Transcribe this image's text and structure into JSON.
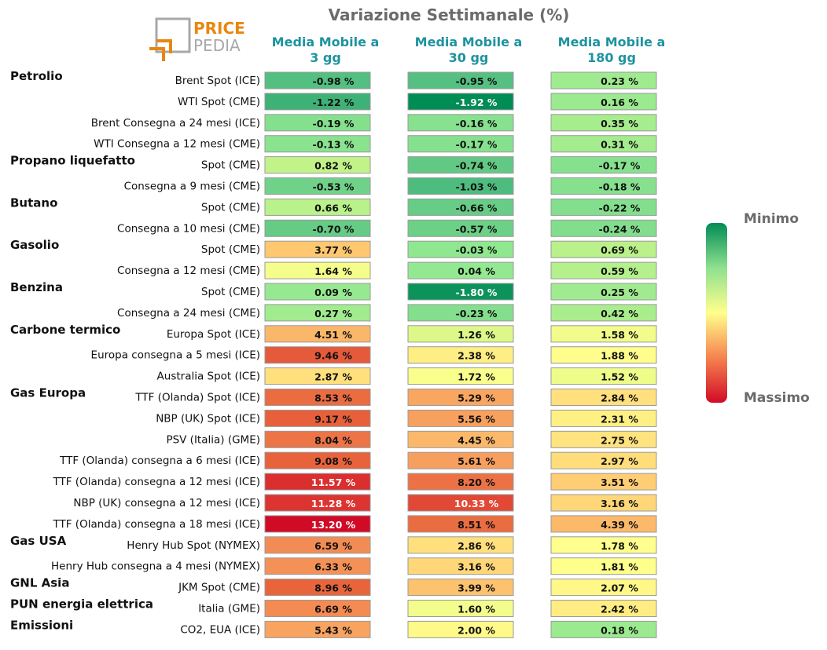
{
  "chart_data": {
    "type": "heatmap",
    "title": "Variazione Settimanale (%)",
    "logo": {
      "part1": "PRICE",
      "part2": "PEDIA"
    },
    "columns": [
      "Media Mobile a 3 gg",
      "Media Mobile a 30 gg",
      "Media Mobile a 180 gg"
    ],
    "value_suffix": " %",
    "legend": {
      "min_label": "Minimo",
      "max_label": "Massimo"
    },
    "groups": [
      {
        "name": "Petrolio",
        "rows": [
          {
            "label": "Brent Spot (ICE)",
            "values": [
              -0.98,
              -0.95,
              0.23
            ]
          },
          {
            "label": "WTI Spot (CME)",
            "values": [
              -1.22,
              -1.92,
              0.16
            ]
          },
          {
            "label": "Brent Consegna a 24 mesi (ICE)",
            "values": [
              -0.19,
              -0.16,
              0.35
            ]
          },
          {
            "label": "WTI Consegna a 12 mesi (CME)",
            "values": [
              -0.13,
              -0.17,
              0.31
            ]
          }
        ]
      },
      {
        "name": "Propano liquefatto",
        "rows": [
          {
            "label": "Spot (CME)",
            "values": [
              0.82,
              -0.74,
              -0.17
            ]
          },
          {
            "label": "Consegna a 9 mesi (CME)",
            "values": [
              -0.53,
              -1.03,
              -0.18
            ]
          }
        ]
      },
      {
        "name": "Butano",
        "rows": [
          {
            "label": "Spot (CME)",
            "values": [
              0.66,
              -0.66,
              -0.22
            ]
          },
          {
            "label": "Consegna a 10 mesi (CME)",
            "values": [
              -0.7,
              -0.57,
              -0.24
            ]
          }
        ]
      },
      {
        "name": "Gasolio",
        "rows": [
          {
            "label": "Spot (CME)",
            "values": [
              3.77,
              -0.03,
              0.69
            ]
          },
          {
            "label": "Consegna a 12 mesi (CME)",
            "values": [
              1.64,
              0.04,
              0.59
            ]
          }
        ]
      },
      {
        "name": "Benzina",
        "rows": [
          {
            "label": "Spot (CME)",
            "values": [
              0.09,
              -1.8,
              0.25
            ]
          },
          {
            "label": "Consegna a 24 mesi (CME)",
            "values": [
              0.27,
              -0.23,
              0.42
            ]
          }
        ]
      },
      {
        "name": "Carbone termico",
        "rows": [
          {
            "label": "Europa Spot (ICE)",
            "values": [
              4.51,
              1.26,
              1.58
            ]
          },
          {
            "label": "Europa consegna a 5 mesi (ICE)",
            "values": [
              9.46,
              2.38,
              1.88
            ]
          },
          {
            "label": "Australia Spot (ICE)",
            "values": [
              2.87,
              1.72,
              1.52
            ]
          }
        ]
      },
      {
        "name": "Gas Europa",
        "rows": [
          {
            "label": "TTF (Olanda) Spot (ICE)",
            "values": [
              8.53,
              5.29,
              2.84
            ]
          },
          {
            "label": "NBP (UK) Spot (ICE)",
            "values": [
              9.17,
              5.56,
              2.31
            ]
          },
          {
            "label": "PSV (Italia) (GME)",
            "values": [
              8.04,
              4.45,
              2.75
            ]
          },
          {
            "label": "TTF (Olanda) consegna a 6 mesi (ICE)",
            "values": [
              9.08,
              5.61,
              2.97
            ]
          },
          {
            "label": "TTF (Olanda) consegna a 12 mesi (ICE)",
            "values": [
              11.57,
              8.2,
              3.51
            ]
          },
          {
            "label": "NBP (UK) consegna a 12 mesi (ICE)",
            "values": [
              11.28,
              10.33,
              3.16
            ]
          },
          {
            "label": "TTF (Olanda) consegna a 18 mesi (ICE)",
            "values": [
              13.2,
              8.51,
              4.39
            ]
          }
        ]
      },
      {
        "name": "Gas USA",
        "rows": [
          {
            "label": "Henry Hub Spot (NYMEX)",
            "values": [
              6.59,
              2.86,
              1.78
            ]
          },
          {
            "label": "Henry Hub consegna a 4 mesi (NYMEX)",
            "values": [
              6.33,
              3.16,
              1.81
            ]
          }
        ]
      },
      {
        "name": "GNL Asia",
        "rows": [
          {
            "label": "JKM Spot (CME)",
            "values": [
              8.96,
              3.99,
              2.07
            ]
          }
        ]
      },
      {
        "name": "PUN energia elettrica",
        "rows": [
          {
            "label": "Italia (GME)",
            "values": [
              6.69,
              1.6,
              2.42
            ]
          }
        ]
      },
      {
        "name": "Emissioni",
        "rows": [
          {
            "label": "CO2, EUA (ICE)",
            "values": [
              5.43,
              2.0,
              0.18
            ]
          }
        ]
      }
    ]
  }
}
